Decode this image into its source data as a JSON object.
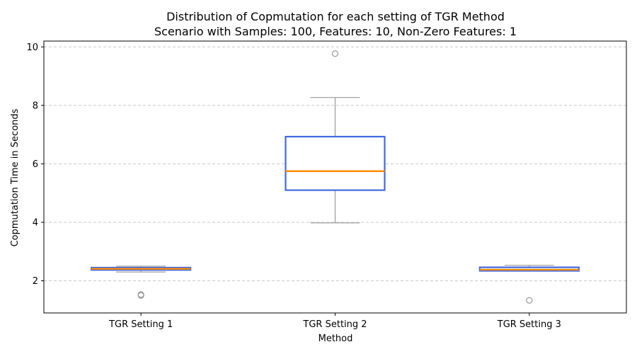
{
  "chart_data": {
    "type": "box",
    "title": "Distribution of Copmutation for each setting of TGR Method",
    "subtitle": "Scenario with Samples: 100, Features: 10, Non-Zero Features: 1",
    "xlabel": "Method",
    "ylabel": "Copmutation Time in Seconds",
    "categories": [
      "TGR Setting 1",
      "TGR Setting 2",
      "TGR Setting 3"
    ],
    "ylim": [
      0.9,
      10.2
    ],
    "yticks": [
      2,
      4,
      6,
      8,
      10
    ],
    "grid": "horizontal-dashed",
    "boxes": [
      {
        "whisker_low": 2.3,
        "q1": 2.37,
        "median": 2.41,
        "q3": 2.45,
        "whisker_high": 2.5,
        "outliers": [
          1.5,
          1.53
        ]
      },
      {
        "whisker_low": 3.98,
        "q1": 5.1,
        "median": 5.75,
        "q3": 6.93,
        "whisker_high": 8.27,
        "outliers": [
          9.77
        ]
      },
      {
        "whisker_low": 2.33,
        "q1": 2.34,
        "median": 2.38,
        "q3": 2.46,
        "whisker_high": 2.53,
        "outliers": [
          1.33
        ]
      }
    ],
    "colors": {
      "box_edge": "#4169e1",
      "median": "#ff8c00",
      "whisker": "#999999",
      "flier": "#999999",
      "grid": "#c8c8c8"
    }
  }
}
